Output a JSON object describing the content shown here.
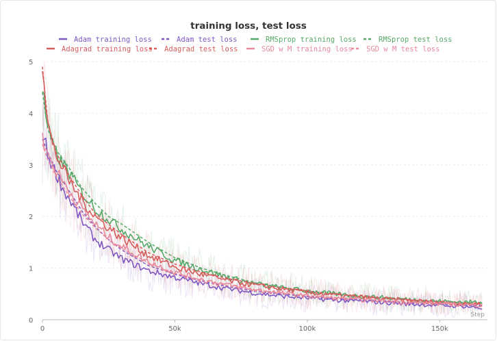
{
  "chart_data": {
    "type": "line",
    "title": "training loss, test loss",
    "xlabel": "Step",
    "ylabel": "",
    "xlim": [
      0,
      168000
    ],
    "ylim": [
      0,
      5
    ],
    "x_ticks": [
      "0",
      "50k",
      "100k",
      "150k"
    ],
    "x_tick_values": [
      0,
      50000,
      100000,
      150000
    ],
    "y_ticks": [
      "0",
      "1",
      "2",
      "3",
      "4",
      "5"
    ],
    "y_tick_values": [
      0,
      1,
      2,
      3,
      4,
      5
    ],
    "grid": "horizontal dashed",
    "legend_position": "top, two rows",
    "series": [
      {
        "name": "Adam training loss",
        "color": "#7e57c2",
        "dash": "solid",
        "smoothed": true,
        "x": [
          0,
          1000,
          2000,
          4000,
          6000,
          8000,
          10000,
          15000,
          20000,
          25000,
          30000,
          40000,
          50000,
          60000,
          70000,
          80000,
          90000,
          100000,
          110000,
          120000,
          130000,
          140000,
          150000,
          160000,
          166000
        ],
        "y": [
          3.6,
          3.45,
          3.2,
          2.95,
          2.75,
          2.5,
          2.35,
          1.9,
          1.55,
          1.35,
          1.18,
          0.95,
          0.82,
          0.7,
          0.6,
          0.52,
          0.46,
          0.42,
          0.38,
          0.36,
          0.33,
          0.3,
          0.28,
          0.26,
          0.22
        ]
      },
      {
        "name": "Adam test loss",
        "color": "#7e57c2",
        "dash": "dashed",
        "smoothed": false,
        "x": [
          0,
          2000,
          5000,
          10000,
          15000,
          20000,
          25000,
          30000,
          40000,
          50000,
          60000,
          70000,
          80000,
          90000,
          100000,
          110000,
          120000,
          130000,
          140000,
          150000,
          160000,
          166000
        ],
        "y": [
          3.5,
          3.25,
          2.9,
          2.5,
          2.1,
          1.8,
          1.55,
          1.35,
          1.05,
          0.88,
          0.75,
          0.64,
          0.55,
          0.5,
          0.45,
          0.41,
          0.38,
          0.35,
          0.32,
          0.3,
          0.28,
          0.27
        ]
      },
      {
        "name": "RMSprop training loss",
        "color": "#55a868",
        "dash": "solid",
        "smoothed": true,
        "x": [
          0,
          1000,
          2000,
          4000,
          6000,
          8000,
          10000,
          15000,
          20000,
          25000,
          30000,
          40000,
          50000,
          60000,
          70000,
          80000,
          90000,
          100000,
          110000,
          120000,
          130000,
          140000,
          150000,
          160000,
          166000
        ],
        "y": [
          4.5,
          4.1,
          3.7,
          3.35,
          3.15,
          3.0,
          2.85,
          2.45,
          2.15,
          1.95,
          1.75,
          1.42,
          1.15,
          0.98,
          0.82,
          0.7,
          0.62,
          0.56,
          0.5,
          0.46,
          0.42,
          0.39,
          0.36,
          0.34,
          0.35
        ]
      },
      {
        "name": "RMSprop test loss",
        "color": "#55a868",
        "dash": "dashed",
        "smoothed": false,
        "x": [
          0,
          2000,
          5000,
          10000,
          15000,
          20000,
          25000,
          30000,
          40000,
          50000,
          60000,
          70000,
          80000,
          90000,
          100000,
          110000,
          120000,
          130000,
          140000,
          150000,
          160000,
          166000
        ],
        "y": [
          4.4,
          3.7,
          3.3,
          2.95,
          2.55,
          2.25,
          2.0,
          1.85,
          1.5,
          1.2,
          1.0,
          0.85,
          0.72,
          0.63,
          0.56,
          0.5,
          0.46,
          0.42,
          0.38,
          0.35,
          0.33,
          0.32
        ]
      },
      {
        "name": "Adagrad training loss",
        "color": "#d65c5c",
        "dash": "solid",
        "smoothed": true,
        "x": [
          0,
          1000,
          2000,
          4000,
          6000,
          8000,
          10000,
          15000,
          20000,
          25000,
          30000,
          40000,
          50000,
          60000,
          70000,
          80000,
          90000,
          100000,
          110000,
          120000,
          130000,
          140000,
          150000,
          160000,
          166000
        ],
        "y": [
          5.0,
          4.4,
          3.8,
          3.35,
          3.1,
          2.9,
          2.7,
          2.3,
          2.0,
          1.78,
          1.58,
          1.25,
          1.02,
          0.88,
          0.76,
          0.67,
          0.6,
          0.53,
          0.48,
          0.44,
          0.4,
          0.37,
          0.34,
          0.3,
          0.32
        ]
      },
      {
        "name": "Adagrad test loss",
        "color": "#d65c5c",
        "dash": "dashed",
        "smoothed": false,
        "x": [
          0,
          2000,
          5000,
          10000,
          15000,
          20000,
          25000,
          30000,
          40000,
          50000,
          60000,
          70000,
          80000,
          90000,
          100000,
          110000,
          120000,
          130000,
          140000,
          150000,
          160000,
          166000
        ],
        "y": [
          4.9,
          3.85,
          3.25,
          2.8,
          2.4,
          2.05,
          1.85,
          1.65,
          1.3,
          1.08,
          0.92,
          0.8,
          0.7,
          0.62,
          0.55,
          0.5,
          0.45,
          0.41,
          0.38,
          0.35,
          0.32,
          0.3
        ]
      },
      {
        "name": "SGD w M training loss",
        "color": "#e8899b",
        "dash": "solid",
        "smoothed": true,
        "x": [
          0,
          2000,
          5000,
          10000,
          15000,
          20000,
          25000,
          30000,
          40000,
          50000,
          60000,
          70000,
          80000,
          90000,
          100000,
          110000,
          120000,
          130000,
          140000,
          150000,
          160000,
          166000
        ],
        "y": [
          3.5,
          3.2,
          2.9,
          2.5,
          2.15,
          1.85,
          1.6,
          1.42,
          1.12,
          0.92,
          0.78,
          0.67,
          0.58,
          0.52,
          0.46,
          0.42,
          0.39,
          0.36,
          0.33,
          0.31,
          0.29,
          0.28
        ]
      },
      {
        "name": "SGD w M test loss",
        "color": "#e8899b",
        "dash": "dashed",
        "smoothed": false,
        "x": [
          0,
          2000,
          5000,
          10000,
          15000,
          20000,
          25000,
          30000,
          40000,
          50000,
          60000,
          70000,
          80000,
          90000,
          100000,
          110000,
          120000,
          130000,
          140000,
          150000,
          160000,
          166000
        ],
        "y": [
          3.4,
          3.1,
          2.8,
          2.4,
          2.05,
          1.78,
          1.55,
          1.38,
          1.1,
          0.9,
          0.77,
          0.66,
          0.58,
          0.52,
          0.47,
          0.43,
          0.4,
          0.37,
          0.34,
          0.32,
          0.3,
          0.29
        ]
      }
    ]
  }
}
